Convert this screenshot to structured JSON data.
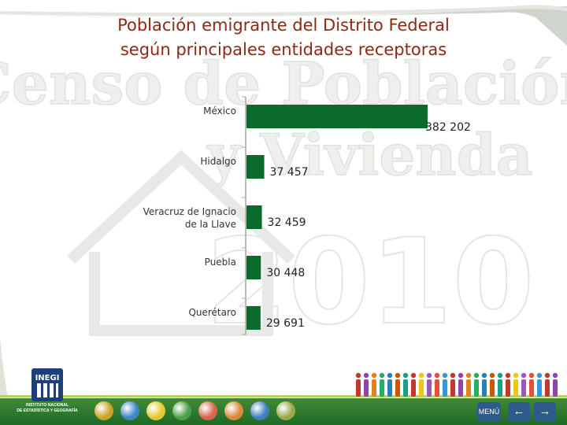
{
  "slide": {
    "title_line1": "Población emigrante del Distrito Federal",
    "title_line2": "según principales entidades receptoras",
    "watermark_line1": "Censo de Población",
    "watermark_line2": "y Vivienda",
    "watermark_year": "2010"
  },
  "footer": {
    "logo_text": "INEGI",
    "institute_line1": "INSTITUTO NACIONAL",
    "institute_line2": "DE ESTADÍSTICA Y GEOGRAFÍA",
    "menu_label": "MENÚ",
    "nav_icons": [
      "history-icon",
      "info-icon",
      "family-icon",
      "people-icon",
      "house-icon",
      "hands-icon",
      "map-icon",
      "document-icon"
    ],
    "nav_colors": [
      "#c9a227",
      "#3f87c9",
      "#e6c930",
      "#4aa04a",
      "#d9664a",
      "#d98a3a",
      "#3f7fc0",
      "#9aa84a"
    ],
    "back_icon": "arrow-left-icon",
    "next_icon": "arrow-right-icon"
  },
  "chart_data": {
    "type": "bar",
    "orientation": "horizontal",
    "title": "Población emigrante del Distrito Federal según principales entidades receptoras",
    "categories": [
      "México",
      "Hidalgo",
      "Veracruz de Ignacio de la Llave",
      "Puebla",
      "Querétaro"
    ],
    "category_label_lines": [
      [
        "México"
      ],
      [
        "Hidalgo"
      ],
      [
        "Veracruz de Ignacio",
        "de la Llave"
      ],
      [
        "Puebla"
      ],
      [
        "Querétaro"
      ]
    ],
    "values": [
      382202,
      37457,
      32459,
      30448,
      29691
    ],
    "value_labels": [
      "382 202",
      "37 457",
      "32 459",
      "30 448",
      "29 691"
    ],
    "bar_color": "#0a6b2c",
    "xlim": [
      0,
      382202
    ],
    "xlabel": "",
    "ylabel": "",
    "grid": false,
    "legend": false
  }
}
